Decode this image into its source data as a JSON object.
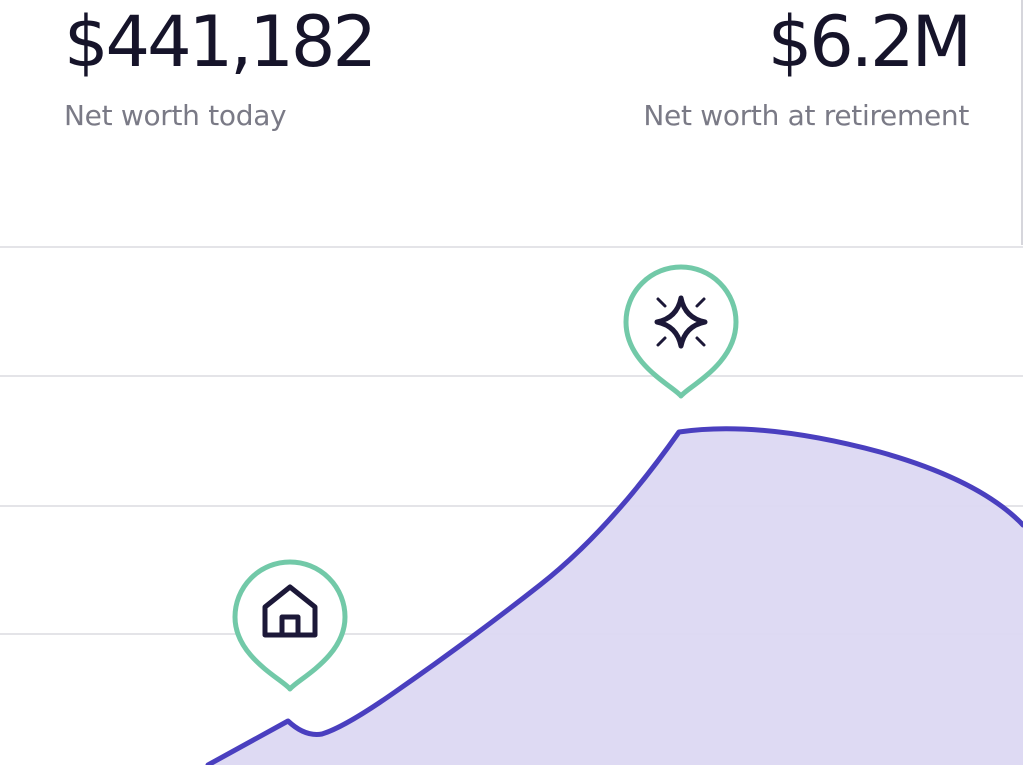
{
  "summary": {
    "today": {
      "value": "$441,182",
      "label": "Net worth today"
    },
    "retirement": {
      "value": "$6.2M",
      "label": "Net worth at retirement"
    }
  },
  "chart": {
    "type": "area",
    "line_color": "#4a3fbf",
    "fill_color": "#dcd8f2",
    "gridline_color": "#e4e4e8",
    "marker_color": "#72c9a8",
    "icon_color": "#1c1838"
  },
  "markers": [
    {
      "icon": "home-icon"
    },
    {
      "icon": "sparkle-icon"
    }
  ]
}
